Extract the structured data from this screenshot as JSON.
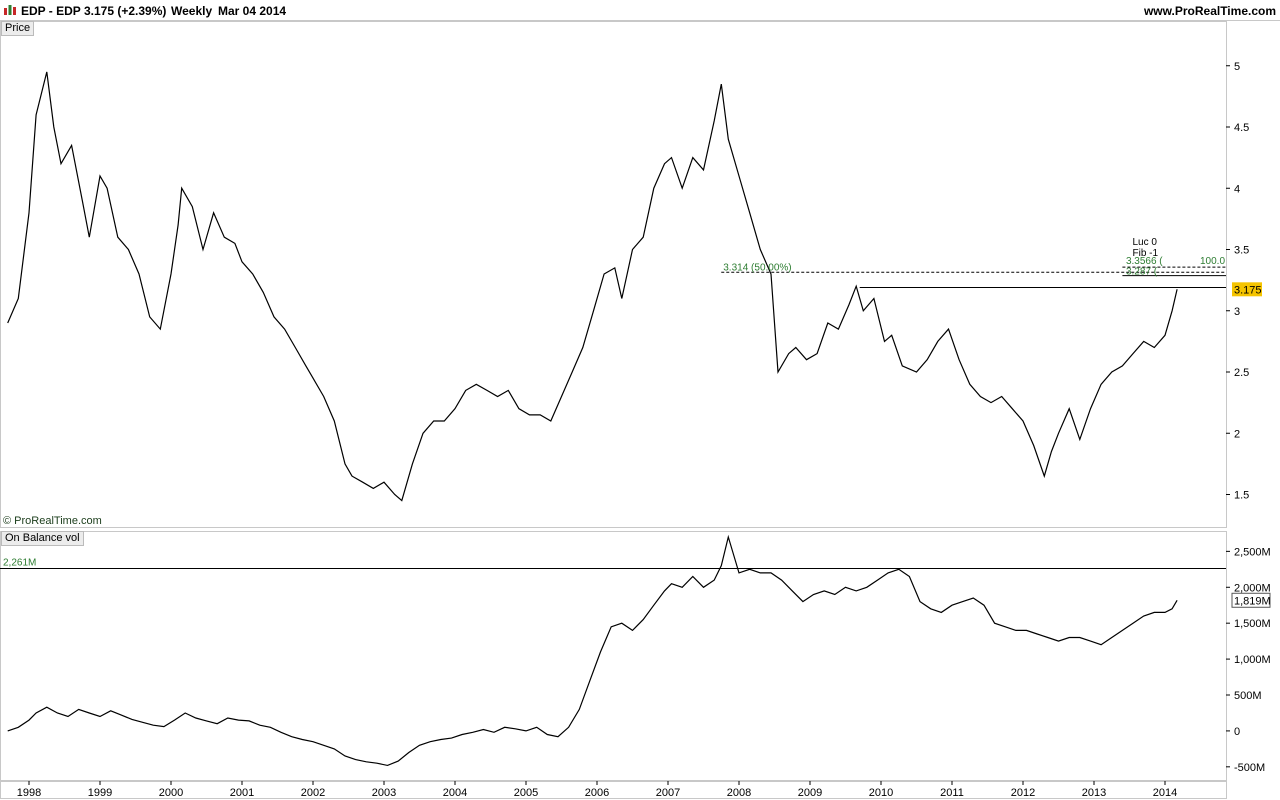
{
  "header": {
    "symbol": "EDP - EDP",
    "price_change": "3.175 (+2.39%)",
    "interval": "Weekly",
    "date": "Mar 04 2014",
    "site": "www.ProRealTime.com"
  },
  "panels": {
    "price_label": "Price",
    "obv_label": "On Balance vol",
    "copyright": "© ProRealTime.com"
  },
  "colors": {
    "line": "#000000",
    "fib_text": "#2e7d32",
    "last_price_badge": "#f5c400",
    "grid_border": "#c8c8c8"
  },
  "chart_data": [
    {
      "type": "line",
      "name": "Price",
      "ylim": [
        1.3,
        5.3
      ],
      "yticks": [
        "5",
        "4.5",
        "4",
        "3.5",
        "3",
        "2.5",
        "2",
        "1.5"
      ],
      "last_value_label": "3.175",
      "annotations": {
        "fib_level_label": "3.314 (50.00%)",
        "fib_level_value": 3.314,
        "fib_upper_label": "3.3566 (",
        "fib_upper_value": 3.3566,
        "fib_lower_label": "3.287 (",
        "fib_lower_value": 3.287,
        "fib_pct_label": "100.0",
        "luc_label": "Luc 0",
        "fib_label": "Fib -1",
        "resistance_value": 3.19
      },
      "x": [
        1997.7,
        1997.85,
        1998.0,
        1998.1,
        1998.25,
        1998.35,
        1998.45,
        1998.6,
        1998.75,
        1998.85,
        1999.0,
        1999.1,
        1999.25,
        1999.4,
        1999.55,
        1999.7,
        1999.85,
        2000.0,
        2000.1,
        2000.15,
        2000.3,
        2000.45,
        2000.6,
        2000.75,
        2000.9,
        2001.0,
        2001.15,
        2001.3,
        2001.45,
        2001.6,
        2001.75,
        2001.9,
        2002.0,
        2002.15,
        2002.3,
        2002.45,
        2002.55,
        2002.7,
        2002.85,
        2003.0,
        2003.15,
        2003.25,
        2003.4,
        2003.55,
        2003.7,
        2003.85,
        2004.0,
        2004.15,
        2004.3,
        2004.45,
        2004.6,
        2004.75,
        2004.9,
        2005.05,
        2005.2,
        2005.35,
        2005.5,
        2005.65,
        2005.8,
        2005.95,
        2006.1,
        2006.25,
        2006.35,
        2006.5,
        2006.65,
        2006.8,
        2006.95,
        2007.05,
        2007.2,
        2007.35,
        2007.5,
        2007.65,
        2007.75,
        2007.85,
        2008.0,
        2008.15,
        2008.3,
        2008.45,
        2008.55,
        2008.7,
        2008.8,
        2008.95,
        2009.1,
        2009.25,
        2009.4,
        2009.55,
        2009.65,
        2009.75,
        2009.9,
        2010.05,
        2010.15,
        2010.3,
        2010.5,
        2010.65,
        2010.8,
        2010.95,
        2011.1,
        2011.25,
        2011.4,
        2011.55,
        2011.7,
        2011.85,
        2012.0,
        2012.15,
        2012.3,
        2012.4,
        2012.5,
        2012.65,
        2012.8,
        2012.95,
        2013.1,
        2013.25,
        2013.4,
        2013.55,
        2013.7,
        2013.85,
        2014.0,
        2014.1,
        2014.17
      ],
      "values": [
        2.9,
        3.1,
        3.8,
        4.6,
        4.95,
        4.5,
        4.2,
        4.35,
        3.9,
        3.6,
        4.1,
        4.0,
        3.6,
        3.5,
        3.3,
        2.95,
        2.85,
        3.3,
        3.7,
        4.0,
        3.85,
        3.5,
        3.8,
        3.6,
        3.55,
        3.4,
        3.3,
        3.15,
        2.95,
        2.85,
        2.7,
        2.55,
        2.45,
        2.3,
        2.1,
        1.75,
        1.65,
        1.6,
        1.55,
        1.6,
        1.5,
        1.45,
        1.75,
        2.0,
        2.1,
        2.1,
        2.2,
        2.35,
        2.4,
        2.35,
        2.3,
        2.35,
        2.2,
        2.15,
        2.15,
        2.1,
        2.3,
        2.5,
        2.7,
        3.0,
        3.3,
        3.35,
        3.1,
        3.5,
        3.6,
        4.0,
        4.2,
        4.25,
        4.0,
        4.25,
        4.15,
        4.55,
        4.85,
        4.4,
        4.1,
        3.8,
        3.5,
        3.3,
        2.5,
        2.65,
        2.7,
        2.6,
        2.65,
        2.9,
        2.85,
        3.05,
        3.2,
        3.0,
        3.1,
        2.75,
        2.8,
        2.55,
        2.5,
        2.6,
        2.75,
        2.85,
        2.6,
        2.4,
        2.3,
        2.25,
        2.3,
        2.2,
        2.1,
        1.9,
        1.65,
        1.85,
        2.0,
        2.2,
        1.95,
        2.2,
        2.4,
        2.5,
        2.55,
        2.65,
        2.75,
        2.7,
        2.8,
        3.0,
        3.175
      ]
    },
    {
      "type": "line",
      "name": "On Balance vol",
      "ylim": [
        -600,
        2700
      ],
      "yticks": [
        "2,500M",
        "2,000M",
        "1,500M",
        "1,000M",
        "500M",
        "0",
        "-500M"
      ],
      "last_value_label": "1,819M",
      "annotations": {
        "level_label": "2,261M",
        "level_value": 2261
      },
      "x": [
        1997.7,
        1997.85,
        1998.0,
        1998.1,
        1998.25,
        1998.4,
        1998.55,
        1998.7,
        1998.85,
        1999.0,
        1999.15,
        1999.3,
        1999.45,
        1999.6,
        1999.75,
        1999.9,
        2000.05,
        2000.2,
        2000.35,
        2000.5,
        2000.65,
        2000.8,
        2000.95,
        2001.1,
        2001.25,
        2001.4,
        2001.55,
        2001.7,
        2001.85,
        2002.0,
        2002.15,
        2002.3,
        2002.45,
        2002.6,
        2002.75,
        2002.9,
        2003.05,
        2003.2,
        2003.35,
        2003.5,
        2003.65,
        2003.8,
        2003.95,
        2004.1,
        2004.25,
        2004.4,
        2004.55,
        2004.7,
        2004.85,
        2005.0,
        2005.15,
        2005.3,
        2005.45,
        2005.6,
        2005.75,
        2005.9,
        2006.05,
        2006.2,
        2006.35,
        2006.5,
        2006.65,
        2006.8,
        2006.95,
        2007.05,
        2007.2,
        2007.35,
        2007.5,
        2007.65,
        2007.75,
        2007.85,
        2008.0,
        2008.15,
        2008.3,
        2008.45,
        2008.6,
        2008.75,
        2008.9,
        2009.05,
        2009.2,
        2009.35,
        2009.5,
        2009.65,
        2009.8,
        2009.95,
        2010.1,
        2010.25,
        2010.4,
        2010.55,
        2010.7,
        2010.85,
        2011.0,
        2011.15,
        2011.3,
        2011.45,
        2011.6,
        2011.75,
        2011.9,
        2012.05,
        2012.2,
        2012.35,
        2012.5,
        2012.65,
        2012.8,
        2012.95,
        2013.1,
        2013.25,
        2013.4,
        2013.55,
        2013.7,
        2013.85,
        2014.0,
        2014.1,
        2014.17
      ],
      "values": [
        0,
        50,
        150,
        250,
        330,
        250,
        200,
        300,
        250,
        200,
        280,
        220,
        160,
        120,
        80,
        60,
        150,
        250,
        180,
        140,
        100,
        180,
        150,
        140,
        80,
        50,
        -20,
        -80,
        -120,
        -150,
        -200,
        -250,
        -350,
        -400,
        -430,
        -450,
        -480,
        -420,
        -300,
        -200,
        -150,
        -120,
        -100,
        -50,
        -20,
        20,
        -20,
        50,
        30,
        0,
        50,
        -50,
        -80,
        50,
        300,
        700,
        1100,
        1450,
        1500,
        1400,
        1550,
        1750,
        1950,
        2050,
        2000,
        2150,
        2000,
        2100,
        2300,
        2700,
        2200,
        2250,
        2200,
        2200,
        2100,
        1950,
        1800,
        1900,
        1950,
        1900,
        2000,
        1950,
        2000,
        2100,
        2200,
        2250,
        2150,
        1800,
        1700,
        1650,
        1750,
        1800,
        1850,
        1750,
        1500,
        1450,
        1400,
        1400,
        1350,
        1300,
        1250,
        1300,
        1300,
        1250,
        1200,
        1300,
        1400,
        1500,
        1600,
        1650,
        1650,
        1700,
        1819
      ]
    }
  ],
  "x_axis": {
    "years": [
      "1998",
      "1999",
      "2000",
      "2001",
      "2002",
      "2003",
      "2004",
      "2005",
      "2006",
      "2007",
      "2008",
      "2009",
      "2010",
      "2011",
      "2012",
      "2013",
      "2014"
    ]
  }
}
